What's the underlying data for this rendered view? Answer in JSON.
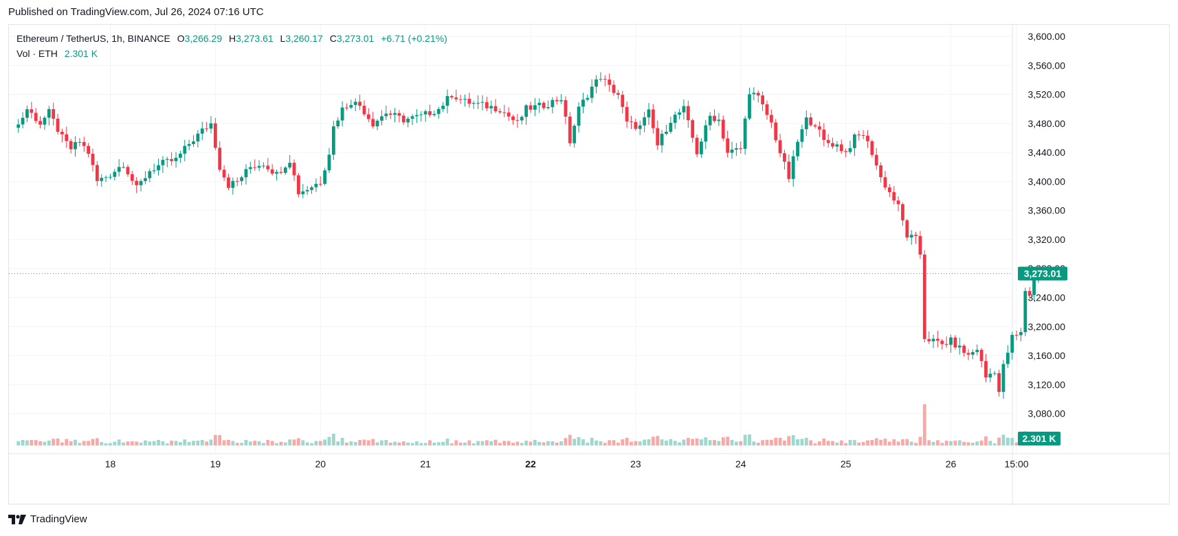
{
  "header": {
    "published": "Published on TradingView.com, Jul 26, 2024 07:16 UTC"
  },
  "legend": {
    "symbol": "Ethereum / TetherUS, 1h, BINANCE",
    "o_label": "O",
    "o_value": "3,266.29",
    "h_label": "H",
    "h_value": "3,273.61",
    "l_label": "L",
    "l_value": "3,260.17",
    "c_label": "C",
    "c_value": "3,273.01",
    "change": "+6.71 (+0.21%)",
    "vol_label": "Vol · ETH",
    "vol_value": "2.301 K"
  },
  "footer": {
    "brand": "TradingView"
  },
  "colors": {
    "up": "#089981",
    "down": "#f23645",
    "vol_up": "#9fd6cd",
    "vol_down": "#f7a9a7",
    "grid": "#f0f3fa",
    "text": "#131722"
  },
  "chart_data": {
    "type": "candlestick",
    "symbol": "Ethereum / TetherUS",
    "interval": "1h",
    "exchange": "BINANCE",
    "ylim": [
      3080,
      3600
    ],
    "y_ticks": [
      "3,600.00",
      "3,560.00",
      "3,520.00",
      "3,480.00",
      "3,440.00",
      "3,400.00",
      "3,360.00",
      "3,320.00",
      "3,280.00",
      "3,240.00",
      "3,200.00",
      "3,160.00",
      "3,120.00",
      "3,080.00"
    ],
    "y_tick_values": [
      3600,
      3560,
      3520,
      3480,
      3440,
      3400,
      3360,
      3320,
      3280,
      3240,
      3200,
      3160,
      3120,
      3080
    ],
    "x_ticks": [
      "18",
      "19",
      "20",
      "21",
      "22",
      "23",
      "24",
      "25",
      "26",
      "15:00"
    ],
    "x_tick_hours": [
      24,
      48,
      72,
      96,
      120,
      144,
      168,
      192,
      216,
      231
    ],
    "x_tick_bold": [
      false,
      false,
      false,
      false,
      true,
      false,
      false,
      false,
      false,
      false
    ],
    "first_candle_hour": 3,
    "last_price": "3,273.01",
    "last_volume": "2.301 K",
    "close_anchors": [
      [
        3,
        3478
      ],
      [
        5,
        3500
      ],
      [
        8,
        3480
      ],
      [
        10,
        3495
      ],
      [
        13,
        3460
      ],
      [
        15,
        3445
      ],
      [
        17,
        3455
      ],
      [
        19,
        3440
      ],
      [
        21,
        3400
      ],
      [
        24,
        3410
      ],
      [
        27,
        3425
      ],
      [
        30,
        3390
      ],
      [
        33,
        3415
      ],
      [
        36,
        3425
      ],
      [
        39,
        3430
      ],
      [
        42,
        3452
      ],
      [
        45,
        3470
      ],
      [
        47,
        3480
      ],
      [
        49,
        3420
      ],
      [
        51,
        3395
      ],
      [
        53,
        3400
      ],
      [
        56,
        3420
      ],
      [
        59,
        3425
      ],
      [
        62,
        3410
      ],
      [
        65,
        3430
      ],
      [
        67,
        3385
      ],
      [
        69,
        3390
      ],
      [
        72,
        3400
      ],
      [
        74,
        3440
      ],
      [
        75,
        3475
      ],
      [
        77,
        3500
      ],
      [
        79,
        3510
      ],
      [
        81,
        3505
      ],
      [
        84,
        3480
      ],
      [
        87,
        3495
      ],
      [
        91,
        3485
      ],
      [
        95,
        3490
      ],
      [
        99,
        3500
      ],
      [
        102,
        3520
      ],
      [
        105,
        3510
      ],
      [
        109,
        3505
      ],
      [
        113,
        3500
      ],
      [
        117,
        3480
      ],
      [
        119,
        3500
      ],
      [
        123,
        3505
      ],
      [
        127,
        3515
      ],
      [
        129,
        3455
      ],
      [
        131,
        3500
      ],
      [
        134,
        3530
      ],
      [
        136,
        3545
      ],
      [
        138,
        3530
      ],
      [
        140,
        3520
      ],
      [
        142,
        3480
      ],
      [
        145,
        3475
      ],
      [
        147,
        3495
      ],
      [
        149,
        3450
      ],
      [
        152,
        3485
      ],
      [
        155,
        3500
      ],
      [
        158,
        3440
      ],
      [
        161,
        3490
      ],
      [
        163,
        3485
      ],
      [
        165,
        3440
      ],
      [
        168,
        3445
      ],
      [
        170,
        3525
      ],
      [
        172,
        3515
      ],
      [
        175,
        3480
      ],
      [
        177,
        3440
      ],
      [
        179,
        3405
      ],
      [
        181,
        3455
      ],
      [
        183,
        3485
      ],
      [
        185,
        3480
      ],
      [
        187,
        3455
      ],
      [
        190,
        3450
      ],
      [
        192,
        3440
      ],
      [
        194,
        3460
      ],
      [
        196,
        3465
      ],
      [
        198,
        3440
      ],
      [
        200,
        3405
      ],
      [
        202,
        3385
      ],
      [
        204,
        3365
      ],
      [
        206,
        3325
      ],
      [
        208,
        3320
      ],
      [
        209,
        3300
      ],
      [
        210,
        3185
      ],
      [
        212,
        3180
      ],
      [
        214,
        3175
      ],
      [
        216,
        3180
      ],
      [
        218,
        3170
      ],
      [
        220,
        3160
      ],
      [
        222,
        3170
      ],
      [
        224,
        3130
      ],
      [
        226,
        3140
      ],
      [
        227,
        3110
      ],
      [
        228,
        3145
      ],
      [
        230,
        3185
      ],
      [
        232,
        3190
      ],
      [
        233,
        3250
      ],
      [
        234,
        3245
      ],
      [
        235,
        3265
      ],
      [
        236,
        3273
      ]
    ]
  }
}
